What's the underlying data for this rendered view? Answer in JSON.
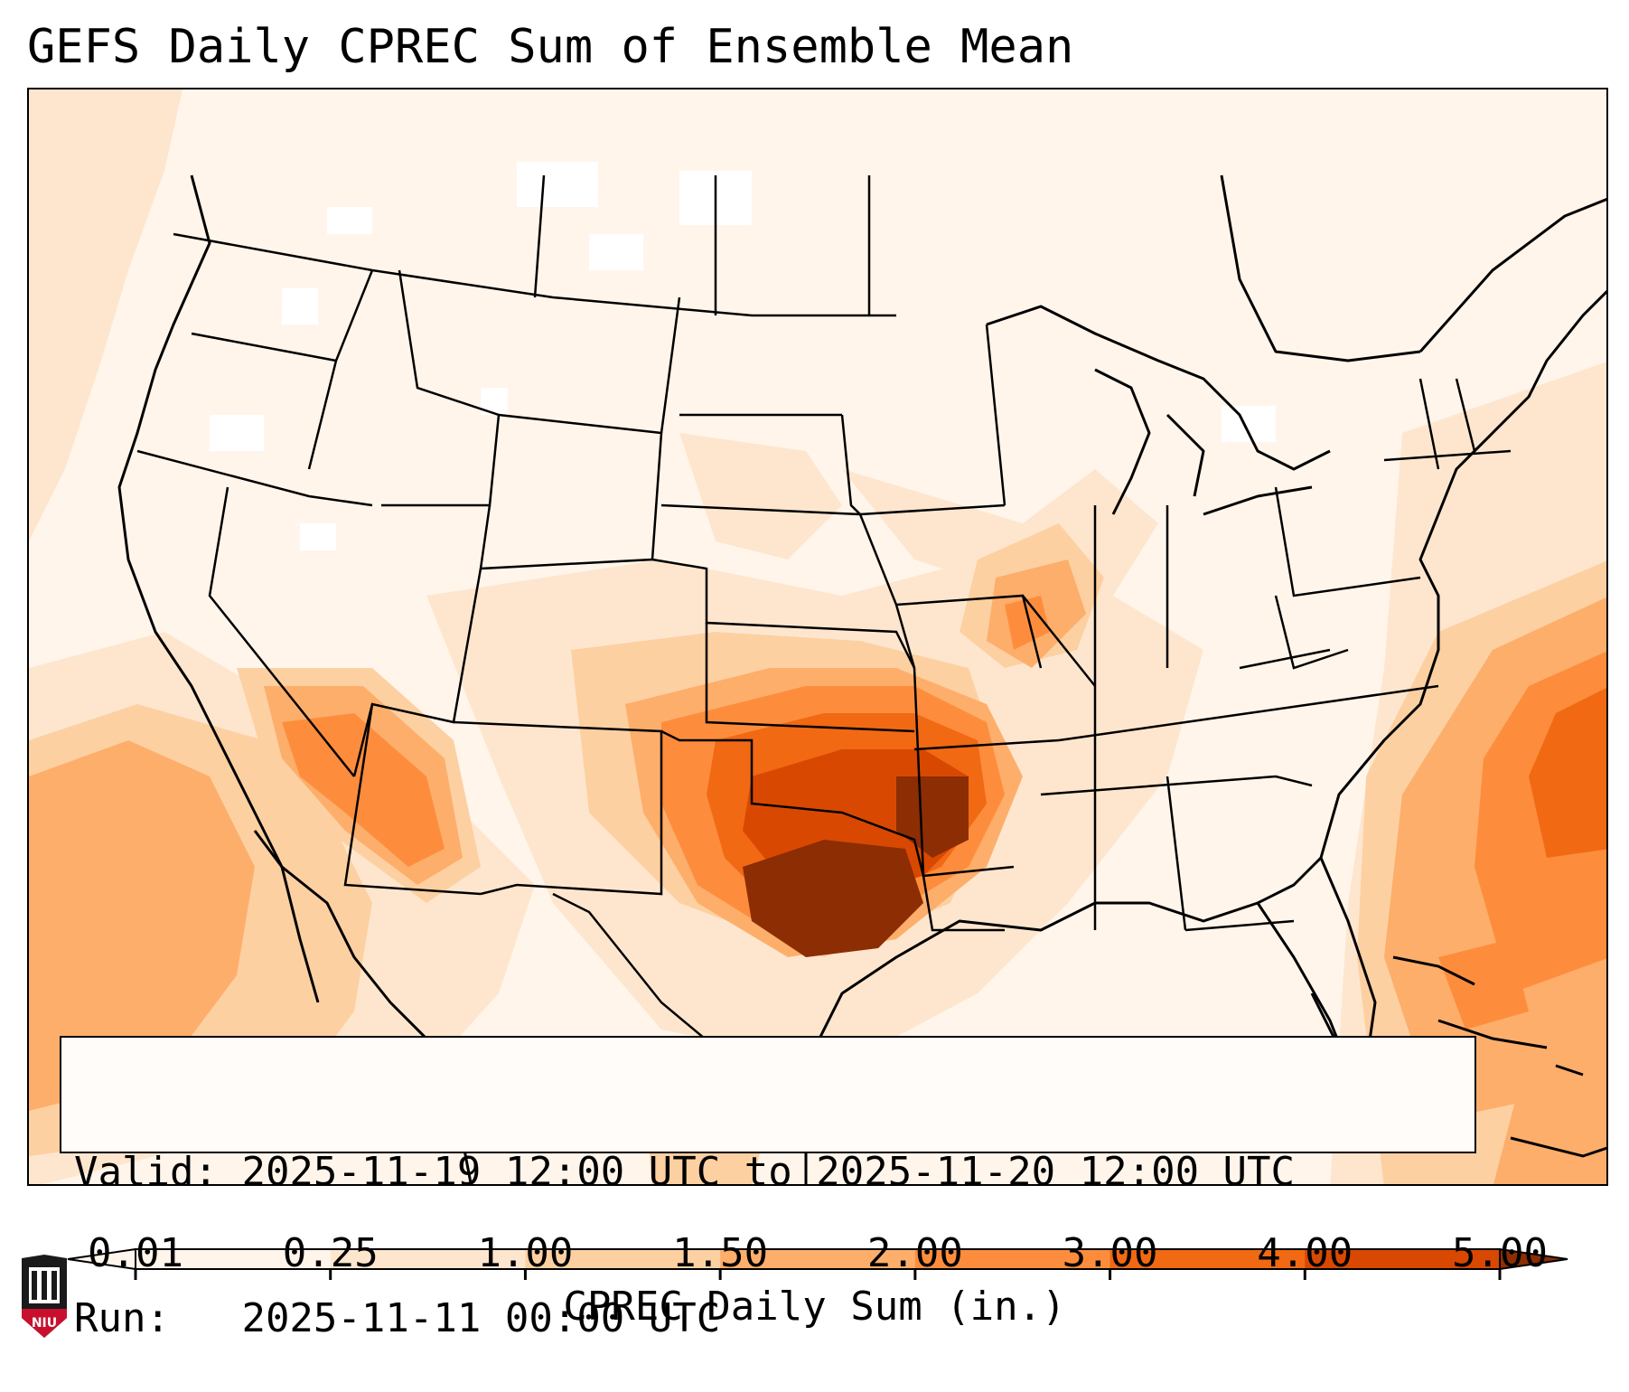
{
  "title": "GEFS Daily CPREC Sum of Ensemble Mean",
  "info": {
    "valid_label": "Valid:",
    "valid_value": "2025-11-19 12:00 UTC to 2025-11-20 12:00 UTC",
    "run_label": "Run:",
    "run_value": "2025-11-11 00:00 UTC"
  },
  "colorbar": {
    "label": "CPREC Daily Sum (in.)",
    "ticks": [
      "0.01",
      "0.25",
      "1.00",
      "1.50",
      "2.00",
      "3.00",
      "4.00",
      "5.00"
    ],
    "colors": [
      "#fff5eb",
      "#fee6ce",
      "#fdd0a2",
      "#fdae6b",
      "#fd8d3c",
      "#f16913",
      "#d94801",
      "#8c2d04"
    ],
    "extend": "both"
  },
  "map": {
    "region": "Continental United States",
    "max_area": "Oklahoma / Arkansas / north Texas",
    "colors": {
      "lowest": "#fff5eb",
      "low": "#fee6ce",
      "light": "#fdd0a2",
      "medium": "#fdae6b",
      "moderate": "#fd8d3c",
      "high": "#f16913",
      "very_high": "#d94801",
      "max": "#8c2d04"
    }
  },
  "logo": {
    "text": "NIU",
    "brand_color": "#c8102e"
  }
}
